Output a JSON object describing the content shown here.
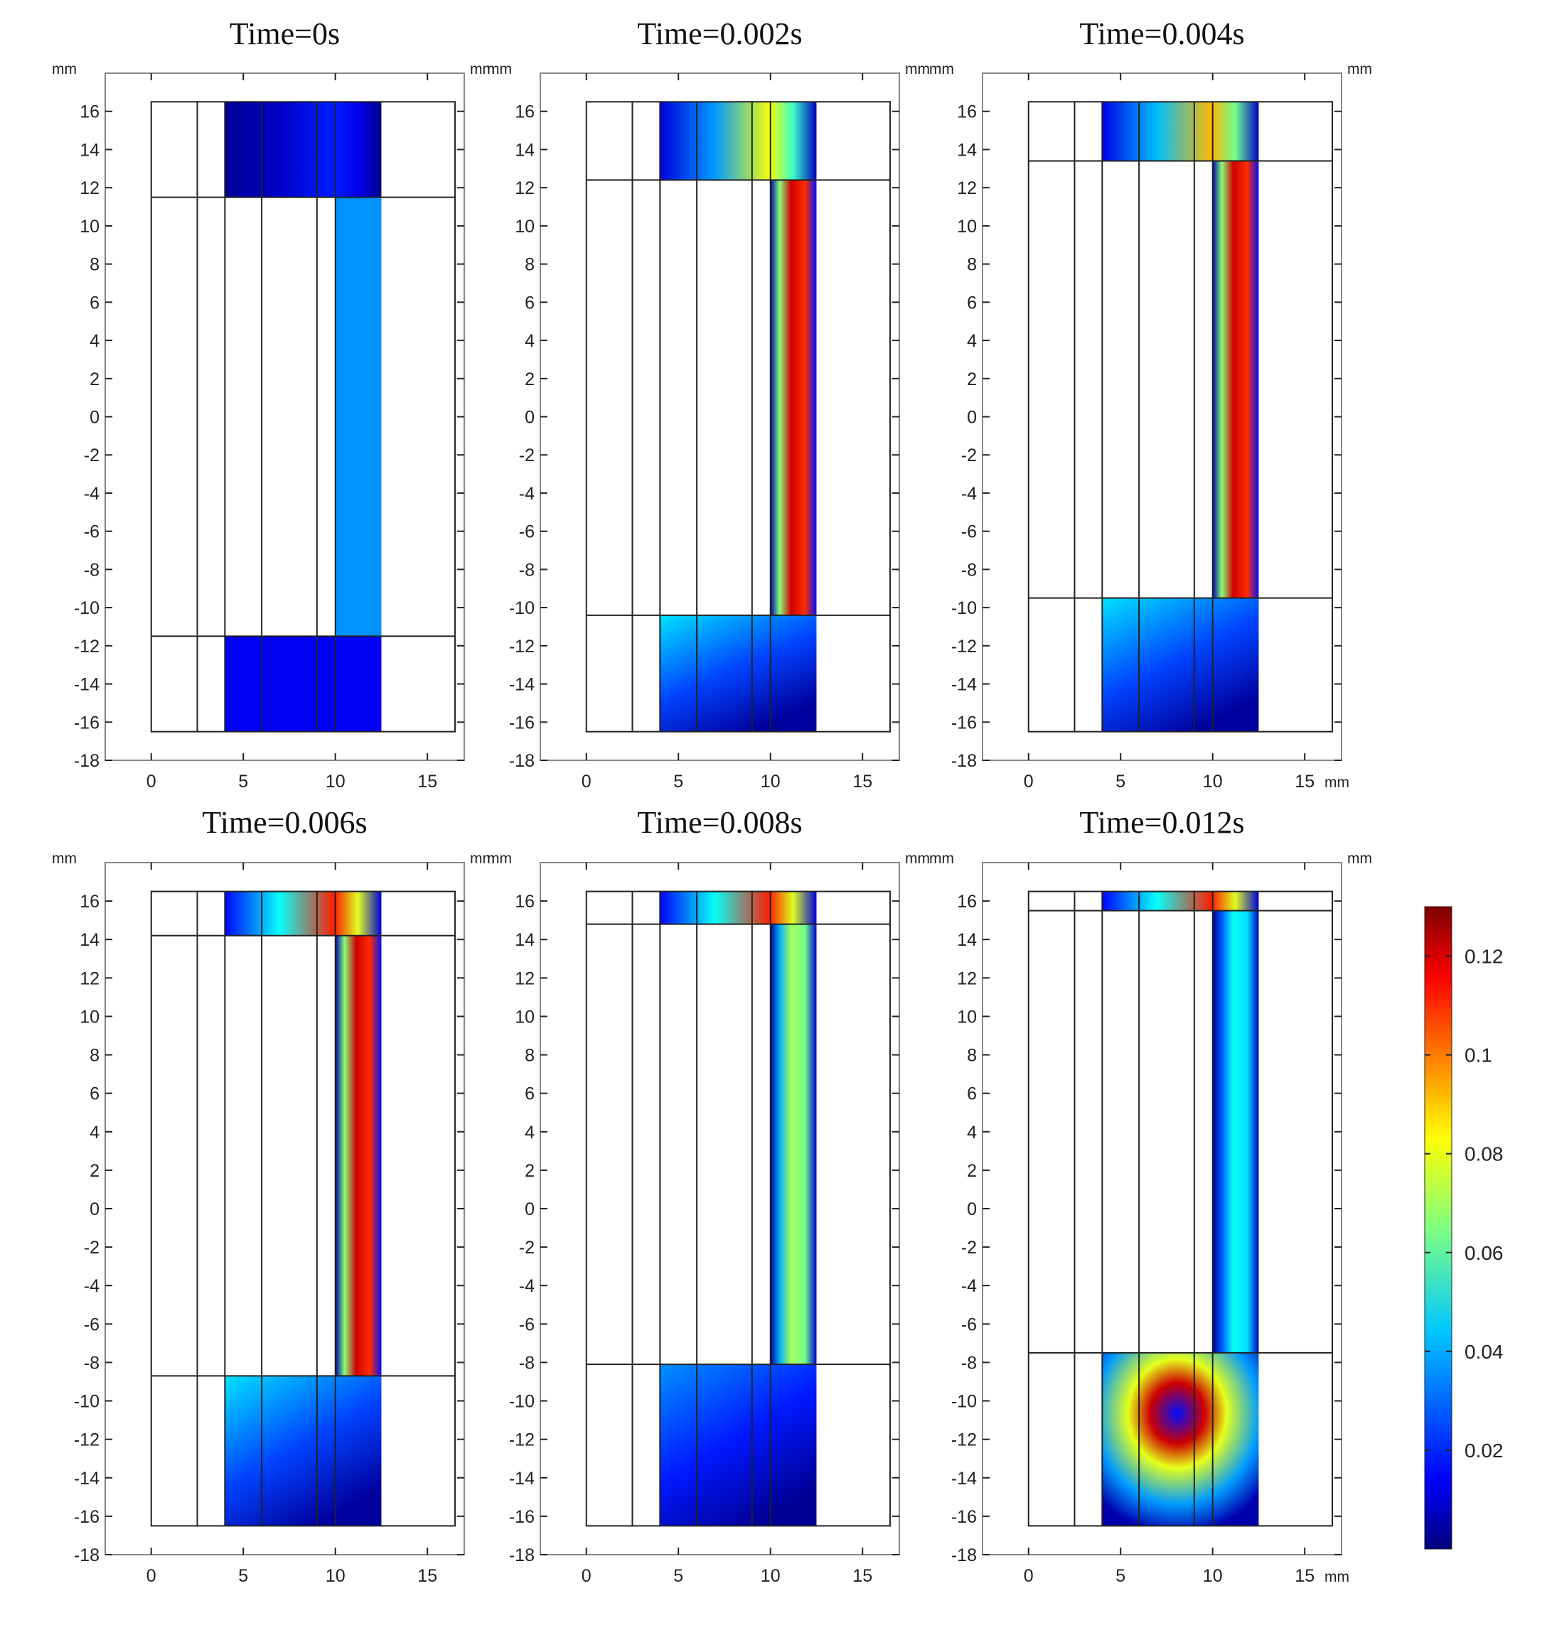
{
  "chart_data": {
    "type": "heatmap",
    "unit_label": "mm",
    "x_ticks": [
      0,
      5,
      10,
      15
    ],
    "y_ticks": [
      16,
      14,
      12,
      10,
      8,
      6,
      4,
      2,
      0,
      -2,
      -4,
      -6,
      -8,
      -10,
      -12,
      -14,
      -16,
      -18
    ],
    "xlim": [
      -2.5,
      17
    ],
    "ylim": [
      -18,
      18
    ],
    "geometry": {
      "outer_box_x": [
        0,
        16.5
      ],
      "outer_box_y": [
        -16.5,
        16.5
      ],
      "channel_x": [
        4,
        12.5
      ],
      "guide_x": [
        2.5,
        4,
        6,
        9,
        10
      ]
    },
    "colorbar": {
      "ticks": [
        0.12,
        0.1,
        0.08,
        0.06,
        0.04,
        0.02
      ],
      "range": [
        0,
        0.13
      ],
      "colormap": "jet"
    },
    "panels": [
      {
        "title": "Time=0s",
        "top_block_bottom": 11.5,
        "bottom_block_top": -11.5,
        "column_peak": 0.035,
        "top_peak": 0.02,
        "bottom_peak": 0.015,
        "bottom_pattern": "uniform"
      },
      {
        "title": "Time=0.002s",
        "top_block_bottom": 12.4,
        "bottom_block_top": -10.4,
        "column_peak": 0.12,
        "top_peak": 0.08,
        "bottom_peak": 0.045,
        "bottom_pattern": "fade"
      },
      {
        "title": "Time=0.004s",
        "top_block_bottom": 13.4,
        "bottom_block_top": -9.5,
        "column_peak": 0.12,
        "top_peak": 0.09,
        "bottom_peak": 0.045,
        "bottom_pattern": "fade"
      },
      {
        "title": "Time=0.006s",
        "top_block_bottom": 14.2,
        "bottom_block_top": -8.7,
        "column_peak": 0.12,
        "top_peak": 0.11,
        "bottom_peak": 0.045,
        "bottom_pattern": "fade"
      },
      {
        "title": "Time=0.008s",
        "top_block_bottom": 14.8,
        "bottom_block_top": -8.1,
        "column_peak": 0.07,
        "top_peak": 0.11,
        "bottom_peak": 0.035,
        "bottom_pattern": "fade"
      },
      {
        "title": "Time=0.012s",
        "top_block_bottom": 15.5,
        "bottom_block_top": -7.5,
        "column_peak": 0.05,
        "top_peak": 0.11,
        "bottom_peak": 0.12,
        "bottom_pattern": "vortex"
      }
    ]
  }
}
